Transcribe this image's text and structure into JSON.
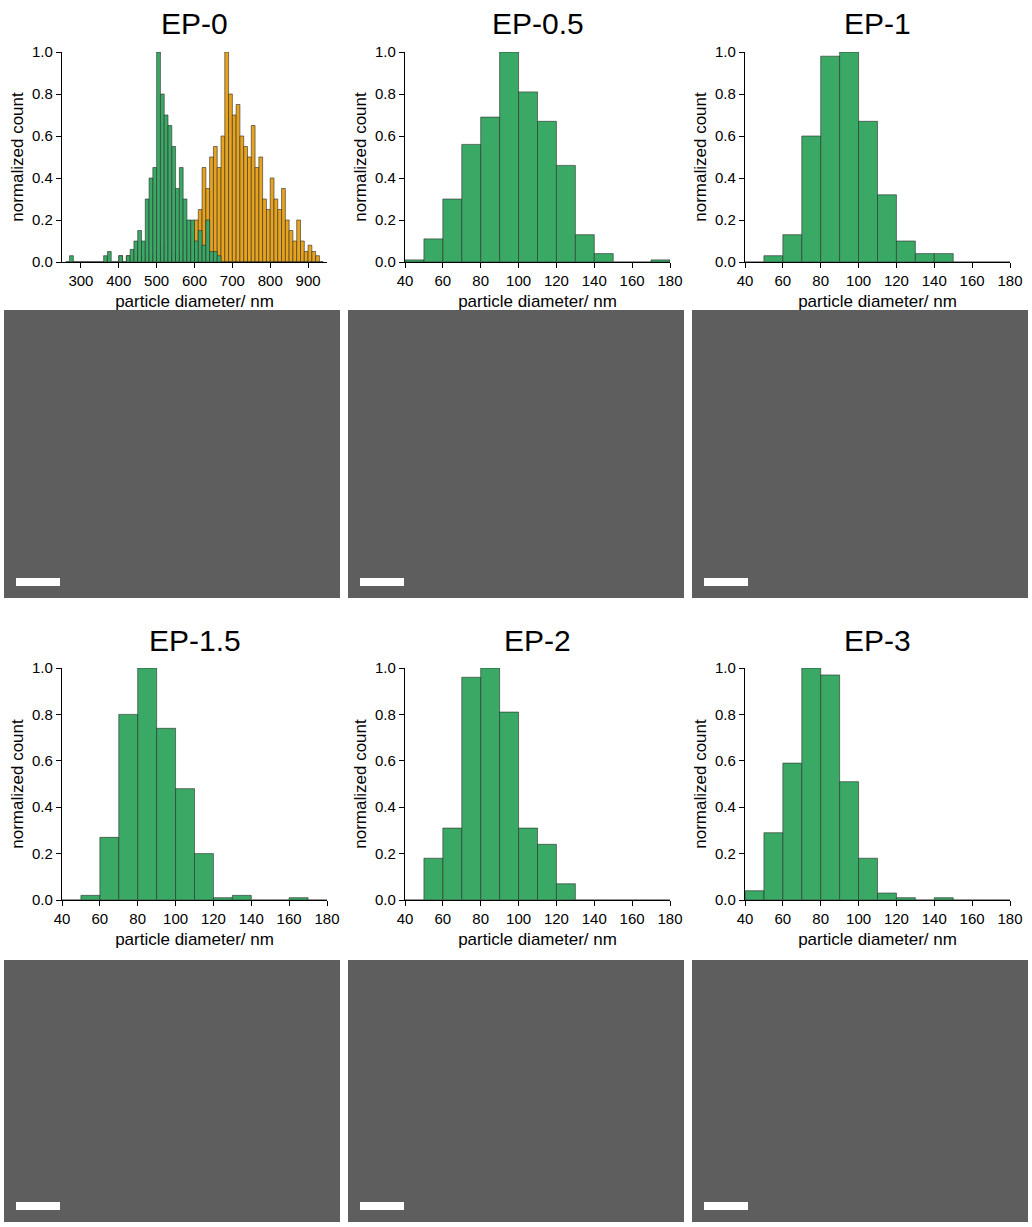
{
  "chart_data": [
    {
      "type": "histogram",
      "title": "EP-0",
      "xlabel": "particle diameter/ nm",
      "ylabel": "normalized count",
      "bins": [
        260,
        270,
        280,
        290,
        300,
        310,
        320,
        330,
        340,
        350,
        360,
        370,
        380,
        390,
        400,
        410,
        420,
        430,
        440,
        450,
        460,
        470,
        480,
        490,
        500,
        510,
        520,
        530,
        540,
        550,
        560,
        570,
        580,
        590,
        600,
        610,
        620,
        630,
        640,
        650,
        660,
        670,
        680,
        690,
        700,
        710,
        720,
        730,
        740,
        750,
        760,
        770,
        780,
        790,
        800,
        810,
        820,
        830,
        840,
        850,
        860,
        870,
        880,
        890,
        900,
        910,
        920,
        930,
        940
      ],
      "series": [
        {
          "color": "#e8a31c",
          "values": [
            0,
            0,
            0,
            0,
            0,
            0,
            0,
            0,
            0,
            0,
            0,
            0,
            0,
            0,
            0.03,
            0,
            0.03,
            0,
            0.05,
            0.03,
            0,
            0.05,
            0.03,
            0,
            0.05,
            0.1,
            0,
            0.05,
            0.03,
            0.05,
            0,
            0.1,
            0.05,
            0.1,
            0.2,
            0.25,
            0.45,
            0.35,
            0.5,
            0.55,
            0.45,
            0.6,
            1.0,
            0.8,
            0.7,
            0.75,
            0.6,
            0.55,
            0.5,
            0.65,
            0.45,
            0.5,
            0.3,
            0.25,
            0.4,
            0.3,
            0.25,
            0.35,
            0.2,
            0.15,
            0.1,
            0.2,
            0.1,
            0.05,
            0.08,
            0.05,
            0.03,
            0
          ]
        },
        {
          "color": "#3aa966",
          "values": [
            0,
            0.03,
            0,
            0,
            0,
            0,
            0,
            0,
            0,
            0,
            0.03,
            0.05,
            0,
            0,
            0.03,
            0,
            0.03,
            0.06,
            0.1,
            0.15,
            0.1,
            0.3,
            0.4,
            0.45,
            1.0,
            0.8,
            0.7,
            0.65,
            0.55,
            0.35,
            0.45,
            0.3,
            0.2,
            0.2,
            0.1,
            0.15,
            0.08,
            0.2,
            0.05,
            0.05,
            0.03,
            0,
            0,
            0,
            0,
            0,
            0,
            0,
            0,
            0,
            0,
            0,
            0,
            0,
            0,
            0,
            0,
            0,
            0,
            0,
            0,
            0,
            0,
            0,
            0,
            0,
            0,
            0
          ]
        }
      ],
      "xlim": [
        250,
        950
      ],
      "xticks": [
        300,
        400,
        500,
        600,
        700,
        800,
        900
      ],
      "ylim": [
        0,
        1.0
      ],
      "yticks": [
        {
          "value": 0,
          "label": "0.0"
        },
        {
          "value": 0.2,
          "label": "0.2"
        },
        {
          "value": 0.4,
          "label": "0.4"
        },
        {
          "value": 0.6,
          "label": "0.6"
        },
        {
          "value": 0.8,
          "label": "0.8"
        },
        {
          "value": 1.0,
          "label": "1.0"
        }
      ],
      "grid": false
    },
    {
      "type": "histogram",
      "title": "EP-0.5",
      "xlabel": "particle diameter/ nm",
      "ylabel": "normalized count",
      "bins": [
        40,
        50,
        60,
        70,
        80,
        90,
        100,
        110,
        120,
        130,
        140,
        150,
        160,
        170,
        180
      ],
      "series": [
        {
          "color": "#3aa966",
          "values": [
            0.01,
            0.11,
            0.3,
            0.56,
            0.69,
            1.0,
            0.81,
            0.67,
            0.46,
            0.13,
            0.04,
            0,
            0,
            0.01
          ]
        }
      ],
      "xlim": [
        40,
        180
      ],
      "xticks": [
        40,
        60,
        80,
        100,
        120,
        140,
        160,
        180
      ],
      "ylim": [
        0,
        1.0
      ],
      "yticks": [
        {
          "value": 0,
          "label": "0.0"
        },
        {
          "value": 0.2,
          "label": "0.2"
        },
        {
          "value": 0.4,
          "label": "0.4"
        },
        {
          "value": 0.6,
          "label": "0.6"
        },
        {
          "value": 0.8,
          "label": "0.8"
        },
        {
          "value": 1.0,
          "label": "1.0"
        }
      ],
      "grid": false
    },
    {
      "type": "histogram",
      "title": "EP-1",
      "xlabel": "particle diameter/ nm",
      "ylabel": "normalized count",
      "bins": [
        40,
        50,
        60,
        70,
        80,
        90,
        100,
        110,
        120,
        130,
        140,
        150,
        160,
        170,
        180
      ],
      "series": [
        {
          "color": "#3aa966",
          "values": [
            0,
            0.03,
            0.13,
            0.6,
            0.98,
            1.0,
            0.67,
            0.32,
            0.1,
            0.04,
            0.04,
            0,
            0,
            0
          ]
        }
      ],
      "xlim": [
        40,
        180
      ],
      "xticks": [
        40,
        60,
        80,
        100,
        120,
        140,
        160,
        180
      ],
      "ylim": [
        0,
        1.0
      ],
      "yticks": [
        {
          "value": 0,
          "label": "0.0"
        },
        {
          "value": 0.2,
          "label": "0.2"
        },
        {
          "value": 0.4,
          "label": "0.4"
        },
        {
          "value": 0.6,
          "label": "0.6"
        },
        {
          "value": 0.8,
          "label": "0.8"
        },
        {
          "value": 1.0,
          "label": "1.0"
        }
      ],
      "grid": false
    },
    {
      "type": "histogram",
      "title": "EP-1.5",
      "xlabel": "particle diameter/ nm",
      "ylabel": "normalized count",
      "bins": [
        40,
        50,
        60,
        70,
        80,
        90,
        100,
        110,
        120,
        130,
        140,
        150,
        160,
        170,
        180
      ],
      "series": [
        {
          "color": "#3aa966",
          "values": [
            0,
            0.02,
            0.27,
            0.8,
            1.0,
            0.74,
            0.48,
            0.2,
            0.01,
            0.02,
            0,
            0,
            0.01,
            0
          ]
        }
      ],
      "xlim": [
        40,
        180
      ],
      "xticks": [
        40,
        60,
        80,
        100,
        120,
        140,
        160,
        180
      ],
      "ylim": [
        0,
        1.0
      ],
      "yticks": [
        {
          "value": 0,
          "label": "0.0"
        },
        {
          "value": 0.2,
          "label": "0.2"
        },
        {
          "value": 0.4,
          "label": "0.4"
        },
        {
          "value": 0.6,
          "label": "0.6"
        },
        {
          "value": 0.8,
          "label": "0.8"
        },
        {
          "value": 1.0,
          "label": "1.0"
        }
      ],
      "grid": false
    },
    {
      "type": "histogram",
      "title": "EP-2",
      "xlabel": "particle diameter/ nm",
      "ylabel": "normalized count",
      "bins": [
        40,
        50,
        60,
        70,
        80,
        90,
        100,
        110,
        120,
        130,
        140,
        150,
        160,
        170,
        180
      ],
      "series": [
        {
          "color": "#3aa966",
          "values": [
            0,
            0.18,
            0.31,
            0.96,
            1.0,
            0.81,
            0.31,
            0.24,
            0.07,
            0,
            0,
            0,
            0,
            0
          ]
        }
      ],
      "xlim": [
        40,
        180
      ],
      "xticks": [
        40,
        60,
        80,
        100,
        120,
        140,
        160,
        180
      ],
      "ylim": [
        0,
        1.0
      ],
      "yticks": [
        {
          "value": 0,
          "label": "0.0"
        },
        {
          "value": 0.2,
          "label": "0.2"
        },
        {
          "value": 0.4,
          "label": "0.4"
        },
        {
          "value": 0.6,
          "label": "0.6"
        },
        {
          "value": 0.8,
          "label": "0.8"
        },
        {
          "value": 1.0,
          "label": "1.0"
        }
      ],
      "grid": false
    },
    {
      "type": "histogram",
      "title": "EP-3",
      "xlabel": "particle diameter/ nm",
      "ylabel": "normalized count",
      "bins": [
        40,
        50,
        60,
        70,
        80,
        90,
        100,
        110,
        120,
        130,
        140,
        150,
        160,
        170,
        180
      ],
      "series": [
        {
          "color": "#3aa966",
          "values": [
            0.04,
            0.29,
            0.59,
            1.0,
            0.97,
            0.51,
            0.18,
            0.03,
            0.01,
            0,
            0.01,
            0,
            0,
            0
          ]
        }
      ],
      "xlim": [
        40,
        180
      ],
      "xticks": [
        40,
        60,
        80,
        100,
        120,
        140,
        160,
        180
      ],
      "ylim": [
        0,
        1.0
      ],
      "yticks": [
        {
          "value": 0,
          "label": "0.0"
        },
        {
          "value": 0.2,
          "label": "0.2"
        },
        {
          "value": 0.4,
          "label": "0.4"
        },
        {
          "value": 0.6,
          "label": "0.6"
        },
        {
          "value": 0.8,
          "label": "0.8"
        },
        {
          "value": 1.0,
          "label": "1.0"
        }
      ],
      "grid": false
    }
  ]
}
